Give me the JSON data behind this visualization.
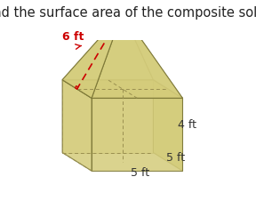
{
  "title": "Find the surface area of the composite solid.",
  "title_fontsize": 10.5,
  "title_color": "#222222",
  "background_color": "#ffffff",
  "face_color": "#d4cc7a",
  "edge_color": "#7a7535",
  "dashed_color": "#9a9050",
  "slant_color": "#cc0000",
  "label_6ft_color": "#cc0000",
  "label_other_color": "#333333",
  "blue_corner": "#2255bb",
  "label_6ft": "6 ft",
  "label_4ft": "4 ft",
  "label_5ft_front": "5 ft",
  "label_5ft_bottom": "5 ft",
  "figsize": [
    2.88,
    2.44
  ],
  "dpi": 100
}
